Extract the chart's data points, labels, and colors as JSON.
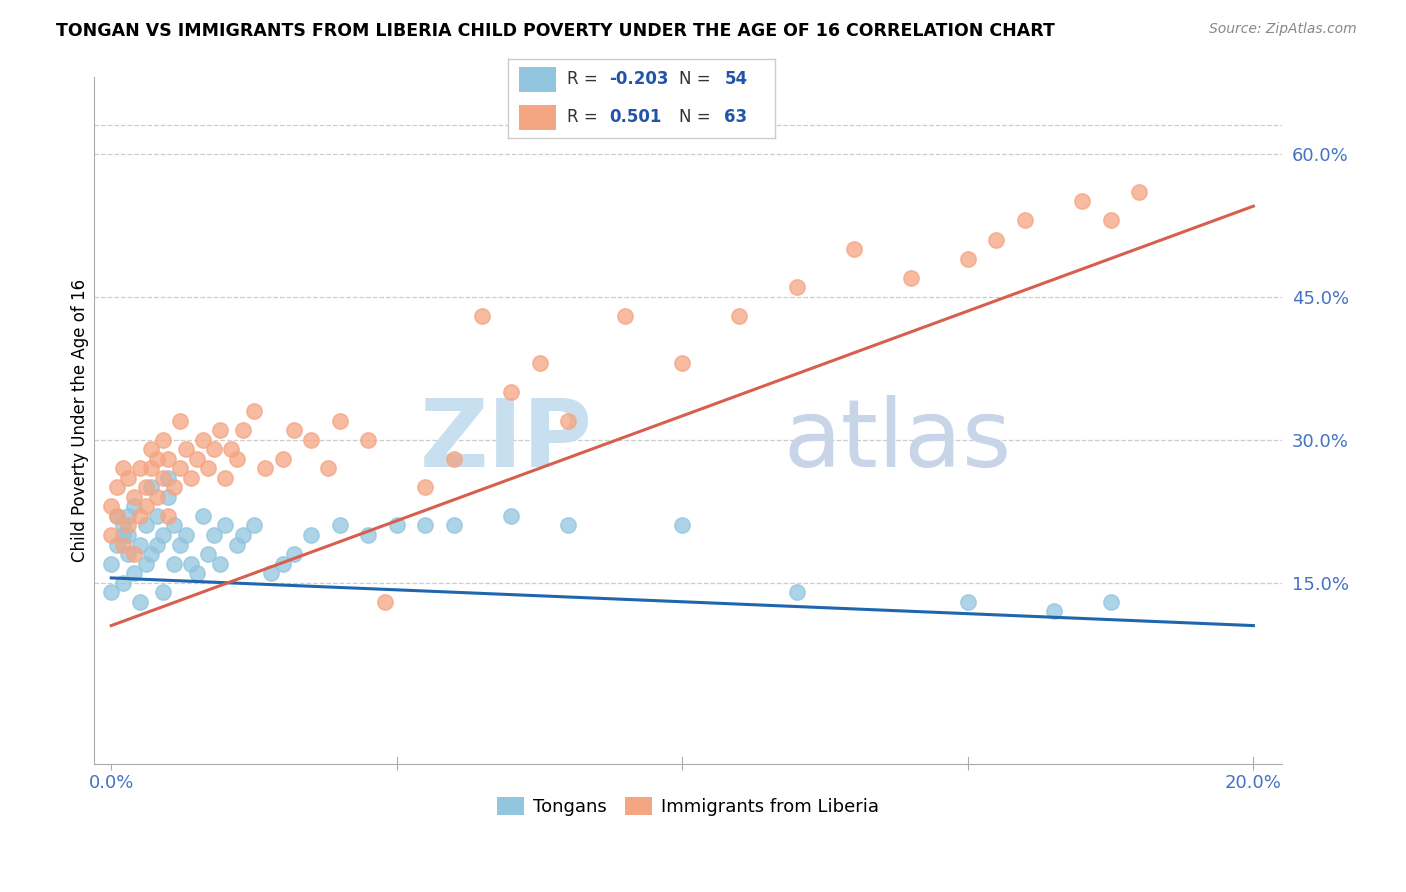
{
  "title": "TONGAN VS IMMIGRANTS FROM LIBERIA CHILD POVERTY UNDER THE AGE OF 16 CORRELATION CHART",
  "source": "Source: ZipAtlas.com",
  "ylabel": "Child Poverty Under the Age of 16",
  "xlim_min": -0.003,
  "xlim_max": 0.205,
  "ylim_min": -0.04,
  "ylim_max": 0.68,
  "tongan_color": "#92c5de",
  "liberia_color": "#f4a582",
  "tongan_line_color": "#2166ac",
  "liberia_line_color": "#d6604d",
  "background_color": "#ffffff",
  "grid_color": "#cccccc",
  "right_tick_color": "#4472c4",
  "x_tick_label_color": "#4472c4",
  "tongan_scatter_x": [
    0.0,
    0.0,
    0.001,
    0.001,
    0.002,
    0.002,
    0.002,
    0.003,
    0.003,
    0.003,
    0.004,
    0.004,
    0.005,
    0.005,
    0.006,
    0.006,
    0.007,
    0.007,
    0.008,
    0.008,
    0.009,
    0.009,
    0.01,
    0.01,
    0.011,
    0.011,
    0.012,
    0.013,
    0.014,
    0.015,
    0.016,
    0.017,
    0.018,
    0.019,
    0.02,
    0.022,
    0.023,
    0.025,
    0.028,
    0.03,
    0.032,
    0.035,
    0.04,
    0.045,
    0.05,
    0.055,
    0.06,
    0.07,
    0.08,
    0.1,
    0.12,
    0.15,
    0.165,
    0.175
  ],
  "tongan_scatter_y": [
    0.14,
    0.17,
    0.19,
    0.22,
    0.2,
    0.21,
    0.15,
    0.18,
    0.2,
    0.22,
    0.16,
    0.23,
    0.13,
    0.19,
    0.17,
    0.21,
    0.18,
    0.25,
    0.19,
    0.22,
    0.14,
    0.2,
    0.24,
    0.26,
    0.17,
    0.21,
    0.19,
    0.2,
    0.17,
    0.16,
    0.22,
    0.18,
    0.2,
    0.17,
    0.21,
    0.19,
    0.2,
    0.21,
    0.16,
    0.17,
    0.18,
    0.2,
    0.21,
    0.2,
    0.21,
    0.21,
    0.21,
    0.22,
    0.21,
    0.21,
    0.14,
    0.13,
    0.12,
    0.13
  ],
  "liberia_scatter_x": [
    0.0,
    0.0,
    0.001,
    0.001,
    0.002,
    0.002,
    0.003,
    0.003,
    0.004,
    0.004,
    0.005,
    0.005,
    0.006,
    0.006,
    0.007,
    0.007,
    0.008,
    0.008,
    0.009,
    0.009,
    0.01,
    0.01,
    0.011,
    0.012,
    0.012,
    0.013,
    0.014,
    0.015,
    0.016,
    0.017,
    0.018,
    0.019,
    0.02,
    0.021,
    0.022,
    0.023,
    0.025,
    0.027,
    0.03,
    0.032,
    0.035,
    0.038,
    0.04,
    0.045,
    0.048,
    0.055,
    0.06,
    0.065,
    0.07,
    0.075,
    0.08,
    0.09,
    0.1,
    0.11,
    0.12,
    0.13,
    0.14,
    0.15,
    0.155,
    0.16,
    0.17,
    0.175,
    0.18
  ],
  "liberia_scatter_y": [
    0.2,
    0.23,
    0.22,
    0.25,
    0.19,
    0.27,
    0.21,
    0.26,
    0.18,
    0.24,
    0.27,
    0.22,
    0.25,
    0.23,
    0.27,
    0.29,
    0.24,
    0.28,
    0.26,
    0.3,
    0.22,
    0.28,
    0.25,
    0.27,
    0.32,
    0.29,
    0.26,
    0.28,
    0.3,
    0.27,
    0.29,
    0.31,
    0.26,
    0.29,
    0.28,
    0.31,
    0.33,
    0.27,
    0.28,
    0.31,
    0.3,
    0.27,
    0.32,
    0.3,
    0.13,
    0.25,
    0.28,
    0.43,
    0.35,
    0.38,
    0.32,
    0.43,
    0.38,
    0.43,
    0.46,
    0.5,
    0.47,
    0.49,
    0.51,
    0.53,
    0.55,
    0.53,
    0.56
  ],
  "tongan_line_x0": 0.0,
  "tongan_line_x1": 0.2,
  "tongan_line_y0": 0.155,
  "tongan_line_y1": 0.105,
  "liberia_line_x0": 0.0,
  "liberia_line_x1": 0.2,
  "liberia_line_y0": 0.105,
  "liberia_line_y1": 0.545,
  "watermark_zip_color": "#c8dff0",
  "watermark_atlas_color": "#c8d4e8"
}
